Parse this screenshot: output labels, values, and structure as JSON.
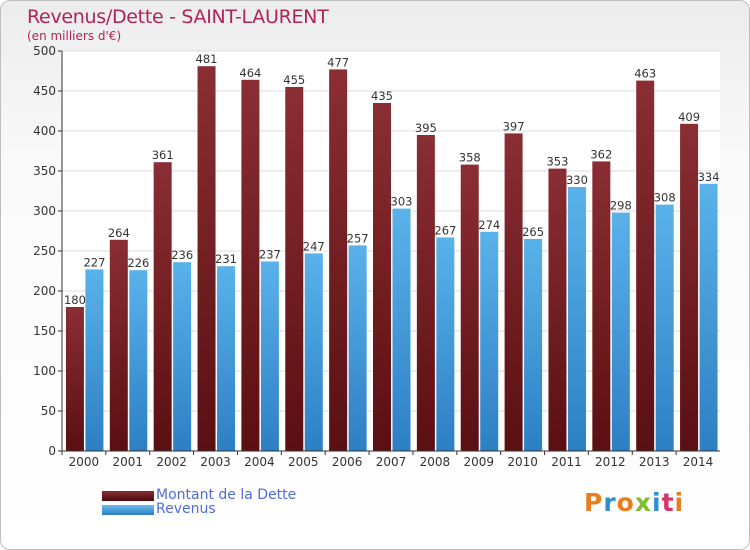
{
  "chart_data": {
    "type": "bar",
    "title": "Revenus/Dette - SAINT-LAURENT",
    "subtitle": "(en milliers d'€)",
    "categories": [
      "2000",
      "2001",
      "2002",
      "2003",
      "2004",
      "2005",
      "2006",
      "2007",
      "2008",
      "2009",
      "2010",
      "2011",
      "2012",
      "2013",
      "2014"
    ],
    "series": [
      {
        "name": "Montant de la Dette",
        "color": "#7a1f24",
        "values": [
          180,
          264,
          361,
          481,
          464,
          455,
          477,
          435,
          395,
          358,
          397,
          353,
          362,
          463,
          409
        ]
      },
      {
        "name": "Revenus",
        "color": "#3b98d9",
        "values": [
          227,
          226,
          236,
          231,
          237,
          247,
          257,
          303,
          267,
          274,
          265,
          330,
          298,
          308,
          334
        ]
      }
    ],
    "ylim": [
      0,
      500
    ],
    "yticks": [
      0,
      50,
      100,
      150,
      200,
      250,
      300,
      350,
      400,
      450,
      500
    ],
    "grid": true,
    "legend_position": "bottom-left"
  },
  "logo": {
    "text": "Proxiti",
    "colors": [
      "#e87d1e",
      "#2e8fd1",
      "#e87d1e",
      "#7cbf2f",
      "#2e8fd1",
      "#d6336c",
      "#e87d1e"
    ]
  }
}
